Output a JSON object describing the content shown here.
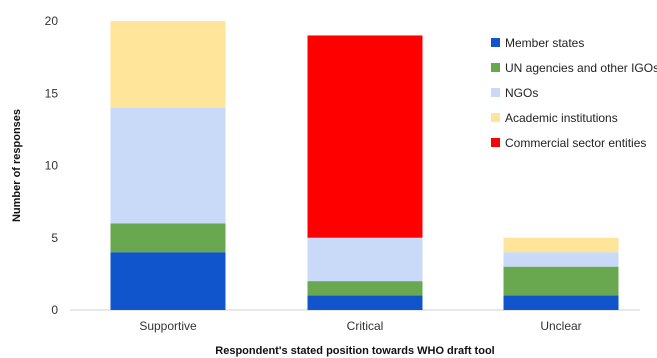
{
  "chart_data": {
    "type": "bar",
    "stacked": true,
    "xlabel": "Respondent's stated position towards WHO draft tool",
    "ylabel": "Number of responses",
    "ylim": [
      0,
      20
    ],
    "yticks": [
      0,
      5,
      10,
      15,
      20
    ],
    "grid": false,
    "legend_position": "top-right",
    "categories": [
      "Supportive",
      "Critical",
      "Unclear"
    ],
    "series": [
      {
        "name": "Member states",
        "color": "#1155cc",
        "values": [
          4,
          1,
          1
        ]
      },
      {
        "name": "UN agencies and other IGOs",
        "color": "#6aa84f",
        "values": [
          2,
          1,
          2
        ]
      },
      {
        "name": "NGOs",
        "color": "#c9daf8",
        "values": [
          8,
          3,
          1
        ]
      },
      {
        "name": "Academic institutions",
        "color": "#ffe599",
        "values": [
          6,
          0,
          1
        ]
      },
      {
        "name": "Commercial sector entities",
        "color": "#ff0000",
        "values": [
          0,
          14,
          0
        ]
      }
    ]
  }
}
